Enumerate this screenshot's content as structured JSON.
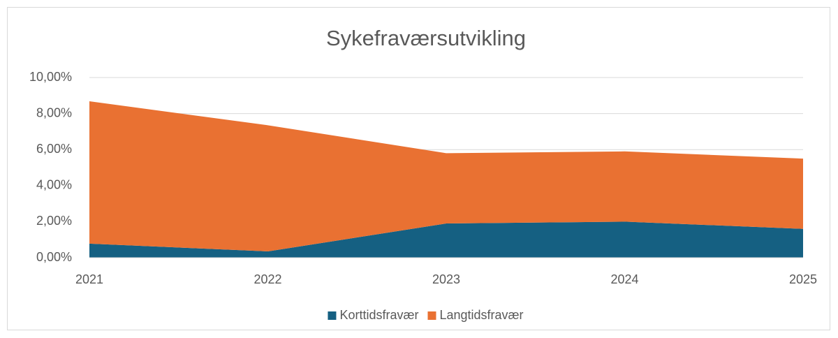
{
  "chart_data": {
    "type": "stacked_area",
    "title": "Sykefraværsutvikling",
    "categories": [
      "2021",
      "2022",
      "2023",
      "2024",
      "2025"
    ],
    "series": [
      {
        "name": "Korttidsfravær",
        "color": "#156082",
        "values": [
          0.78,
          0.35,
          1.9,
          2.0,
          1.6
        ]
      },
      {
        "name": "Langtidsfravær",
        "color": "#e97132",
        "values": [
          7.9,
          7.0,
          3.9,
          3.9,
          3.9
        ]
      }
    ],
    "ylim": [
      0,
      10
    ],
    "yticks": [
      {
        "value": 0,
        "label": "0,00%"
      },
      {
        "value": 2,
        "label": "2,00%"
      },
      {
        "value": 4,
        "label": "4,00%"
      },
      {
        "value": 6,
        "label": "6,00%"
      },
      {
        "value": 8,
        "label": "8,00%"
      },
      {
        "value": 10,
        "label": "10,00%"
      }
    ],
    "grid": true,
    "legend": "bottom"
  }
}
